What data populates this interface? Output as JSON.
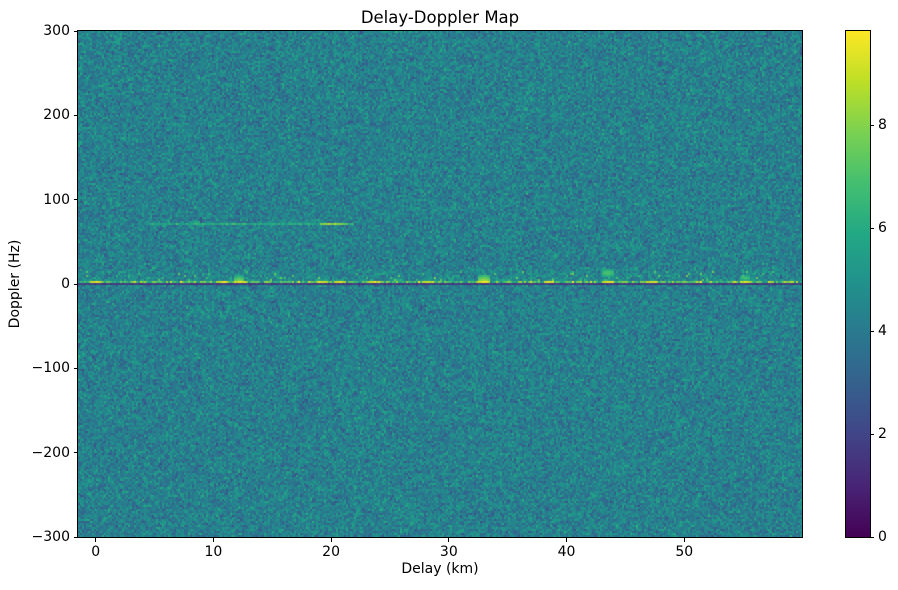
{
  "chart_data": {
    "type": "heatmap",
    "title": "Delay-Doppler Map",
    "xlabel": "Delay (km)",
    "ylabel": "Doppler (Hz)",
    "xlim": [
      -1.5,
      60
    ],
    "ylim": [
      -300,
      300
    ],
    "xticks": [
      0,
      10,
      20,
      30,
      40,
      50
    ],
    "yticks": [
      300,
      200,
      100,
      0,
      -100,
      -200,
      -300
    ],
    "grid": false,
    "legend": "none",
    "colorbar": {
      "position": "right",
      "vmin": 0,
      "vmax": 9.83,
      "ticks": [
        0,
        2,
        4,
        6,
        8
      ],
      "colormap": "viridis",
      "stops": [
        [
          0.0,
          "#440154"
        ],
        [
          0.1,
          "#482475"
        ],
        [
          0.2,
          "#414487"
        ],
        [
          0.3,
          "#35608d"
        ],
        [
          0.4,
          "#2a788e"
        ],
        [
          0.5,
          "#21918c"
        ],
        [
          0.6,
          "#22a884"
        ],
        [
          0.7,
          "#44bf70"
        ],
        [
          0.8,
          "#7ad151"
        ],
        [
          0.9,
          "#bddf26"
        ],
        [
          1.0,
          "#fde725"
        ]
      ]
    },
    "noise": {
      "mean": 4.25,
      "std": 0.72,
      "seed": 987654321,
      "speckle": {
        "doppler_range": [
          2.5,
          15
        ],
        "probability": 0.05,
        "value_range": [
          5.6,
          7.8
        ]
      },
      "elevated_band": {
        "doppler_range": [
          0,
          20
        ],
        "boost": 0.55,
        "decay_hz": 10
      }
    },
    "features": {
      "zero_doppler_bright_line": {
        "doppler": 2.4,
        "delay_range": [
          -1.5,
          60
        ],
        "base_value": 6.9,
        "jitter": 1.3,
        "blob_delays": [
          0.0,
          10.8,
          12.2,
          19.3,
          20.8,
          23.6,
          28.3,
          33.0,
          38.5,
          43.5,
          47.3,
          55.2
        ],
        "blob_value": 9.5
      },
      "zero_doppler_dark_line": {
        "doppler": -1.2,
        "delay_range": [
          -1.5,
          60
        ],
        "value": 1.25
      },
      "faint_doppler_line": {
        "doppler": 71,
        "delay_range": [
          4.5,
          22
        ],
        "value": 6.0,
        "jitter": 0.8,
        "peak": {
          "delay_range": [
            19.0,
            21.4
          ],
          "value": 8.1
        }
      },
      "hotspots": [
        {
          "delay": 12.2,
          "doppler": 5,
          "value": 7.8
        },
        {
          "delay": 33.0,
          "doppler": 5,
          "value": 8.4
        },
        {
          "delay": 43.5,
          "doppler": 13,
          "value": 7.5
        },
        {
          "delay": 55.2,
          "doppler": 7,
          "value": 7.0
        }
      ]
    },
    "colors": {
      "background": "#ffffff",
      "text": "#000000",
      "axes_edge": "#000000"
    }
  }
}
